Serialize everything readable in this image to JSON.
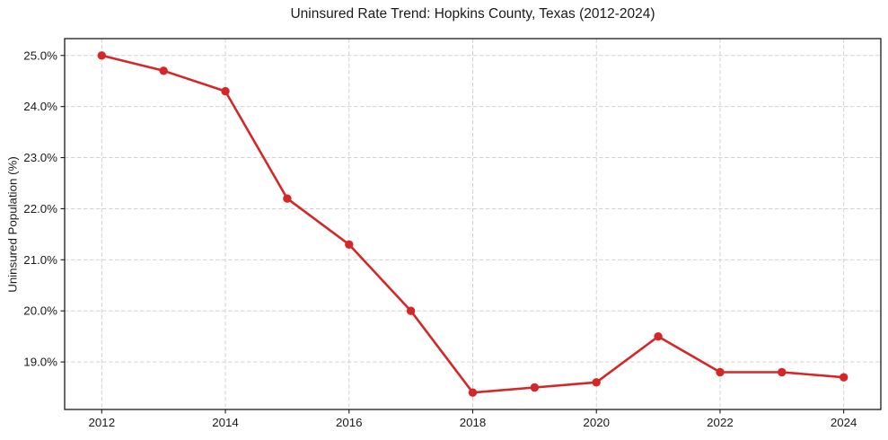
{
  "chart_data": {
    "type": "line",
    "title": "Uninsured Rate Trend: Hopkins County, Texas (2012-2024)",
    "xlabel": "",
    "ylabel": "Uninsured Population (%)",
    "x": [
      2012,
      2013,
      2014,
      2015,
      2016,
      2017,
      2018,
      2019,
      2020,
      2021,
      2022,
      2023,
      2024
    ],
    "series": [
      {
        "name": "Uninsured Rate",
        "values": [
          25.0,
          24.7,
          24.3,
          22.2,
          21.3,
          20.0,
          18.4,
          18.5,
          18.6,
          19.5,
          18.8,
          18.8,
          18.7
        ]
      }
    ],
    "xticks": [
      2012,
      2014,
      2016,
      2018,
      2020,
      2022,
      2024
    ],
    "xtick_labels": [
      "2012",
      "2014",
      "2016",
      "2018",
      "2020",
      "2022",
      "2024"
    ],
    "yticks": [
      19.0,
      20.0,
      21.0,
      22.0,
      23.0,
      24.0,
      25.0
    ],
    "ytick_labels": [
      "19.0%",
      "20.0%",
      "21.0%",
      "22.0%",
      "23.0%",
      "24.0%",
      "25.0%"
    ],
    "xlim": [
      2011.4,
      2024.6
    ],
    "ylim": [
      18.07,
      25.33
    ],
    "grid": true,
    "grid_style": "dashed",
    "legend": "none",
    "marker": "circle",
    "colors": {
      "line": "#d62728",
      "marker": "#d62728",
      "grid": "#cccccc",
      "axis": "#1a1a1a",
      "text": "#1a1a1a",
      "background": "#ffffff"
    }
  }
}
